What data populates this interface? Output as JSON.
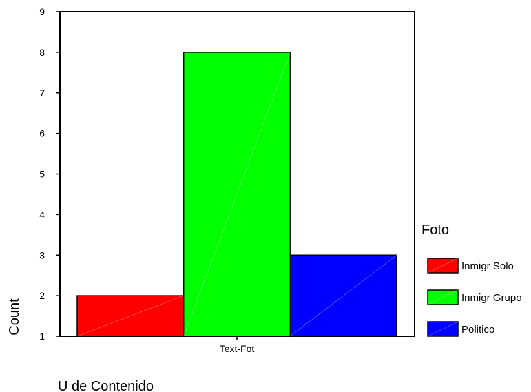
{
  "chart_data": {
    "type": "bar",
    "categories": [
      "Text-Fot"
    ],
    "series": [
      {
        "name": "Inmigr Solo",
        "values": [
          2
        ],
        "color": "#ff0000"
      },
      {
        "name": "Inmigr Grupo",
        "values": [
          8
        ],
        "color": "#00ff00"
      },
      {
        "name": "Politico",
        "values": [
          3
        ],
        "color": "#0000ff"
      }
    ],
    "title": "",
    "xlabel": "U de Contenido",
    "ylabel": "Count",
    "ylim": [
      1,
      9
    ],
    "yticks": [
      1,
      2,
      3,
      4,
      5,
      6,
      7,
      8,
      9
    ],
    "legend_title": "Foto",
    "legend_position": "right",
    "grid": false
  }
}
